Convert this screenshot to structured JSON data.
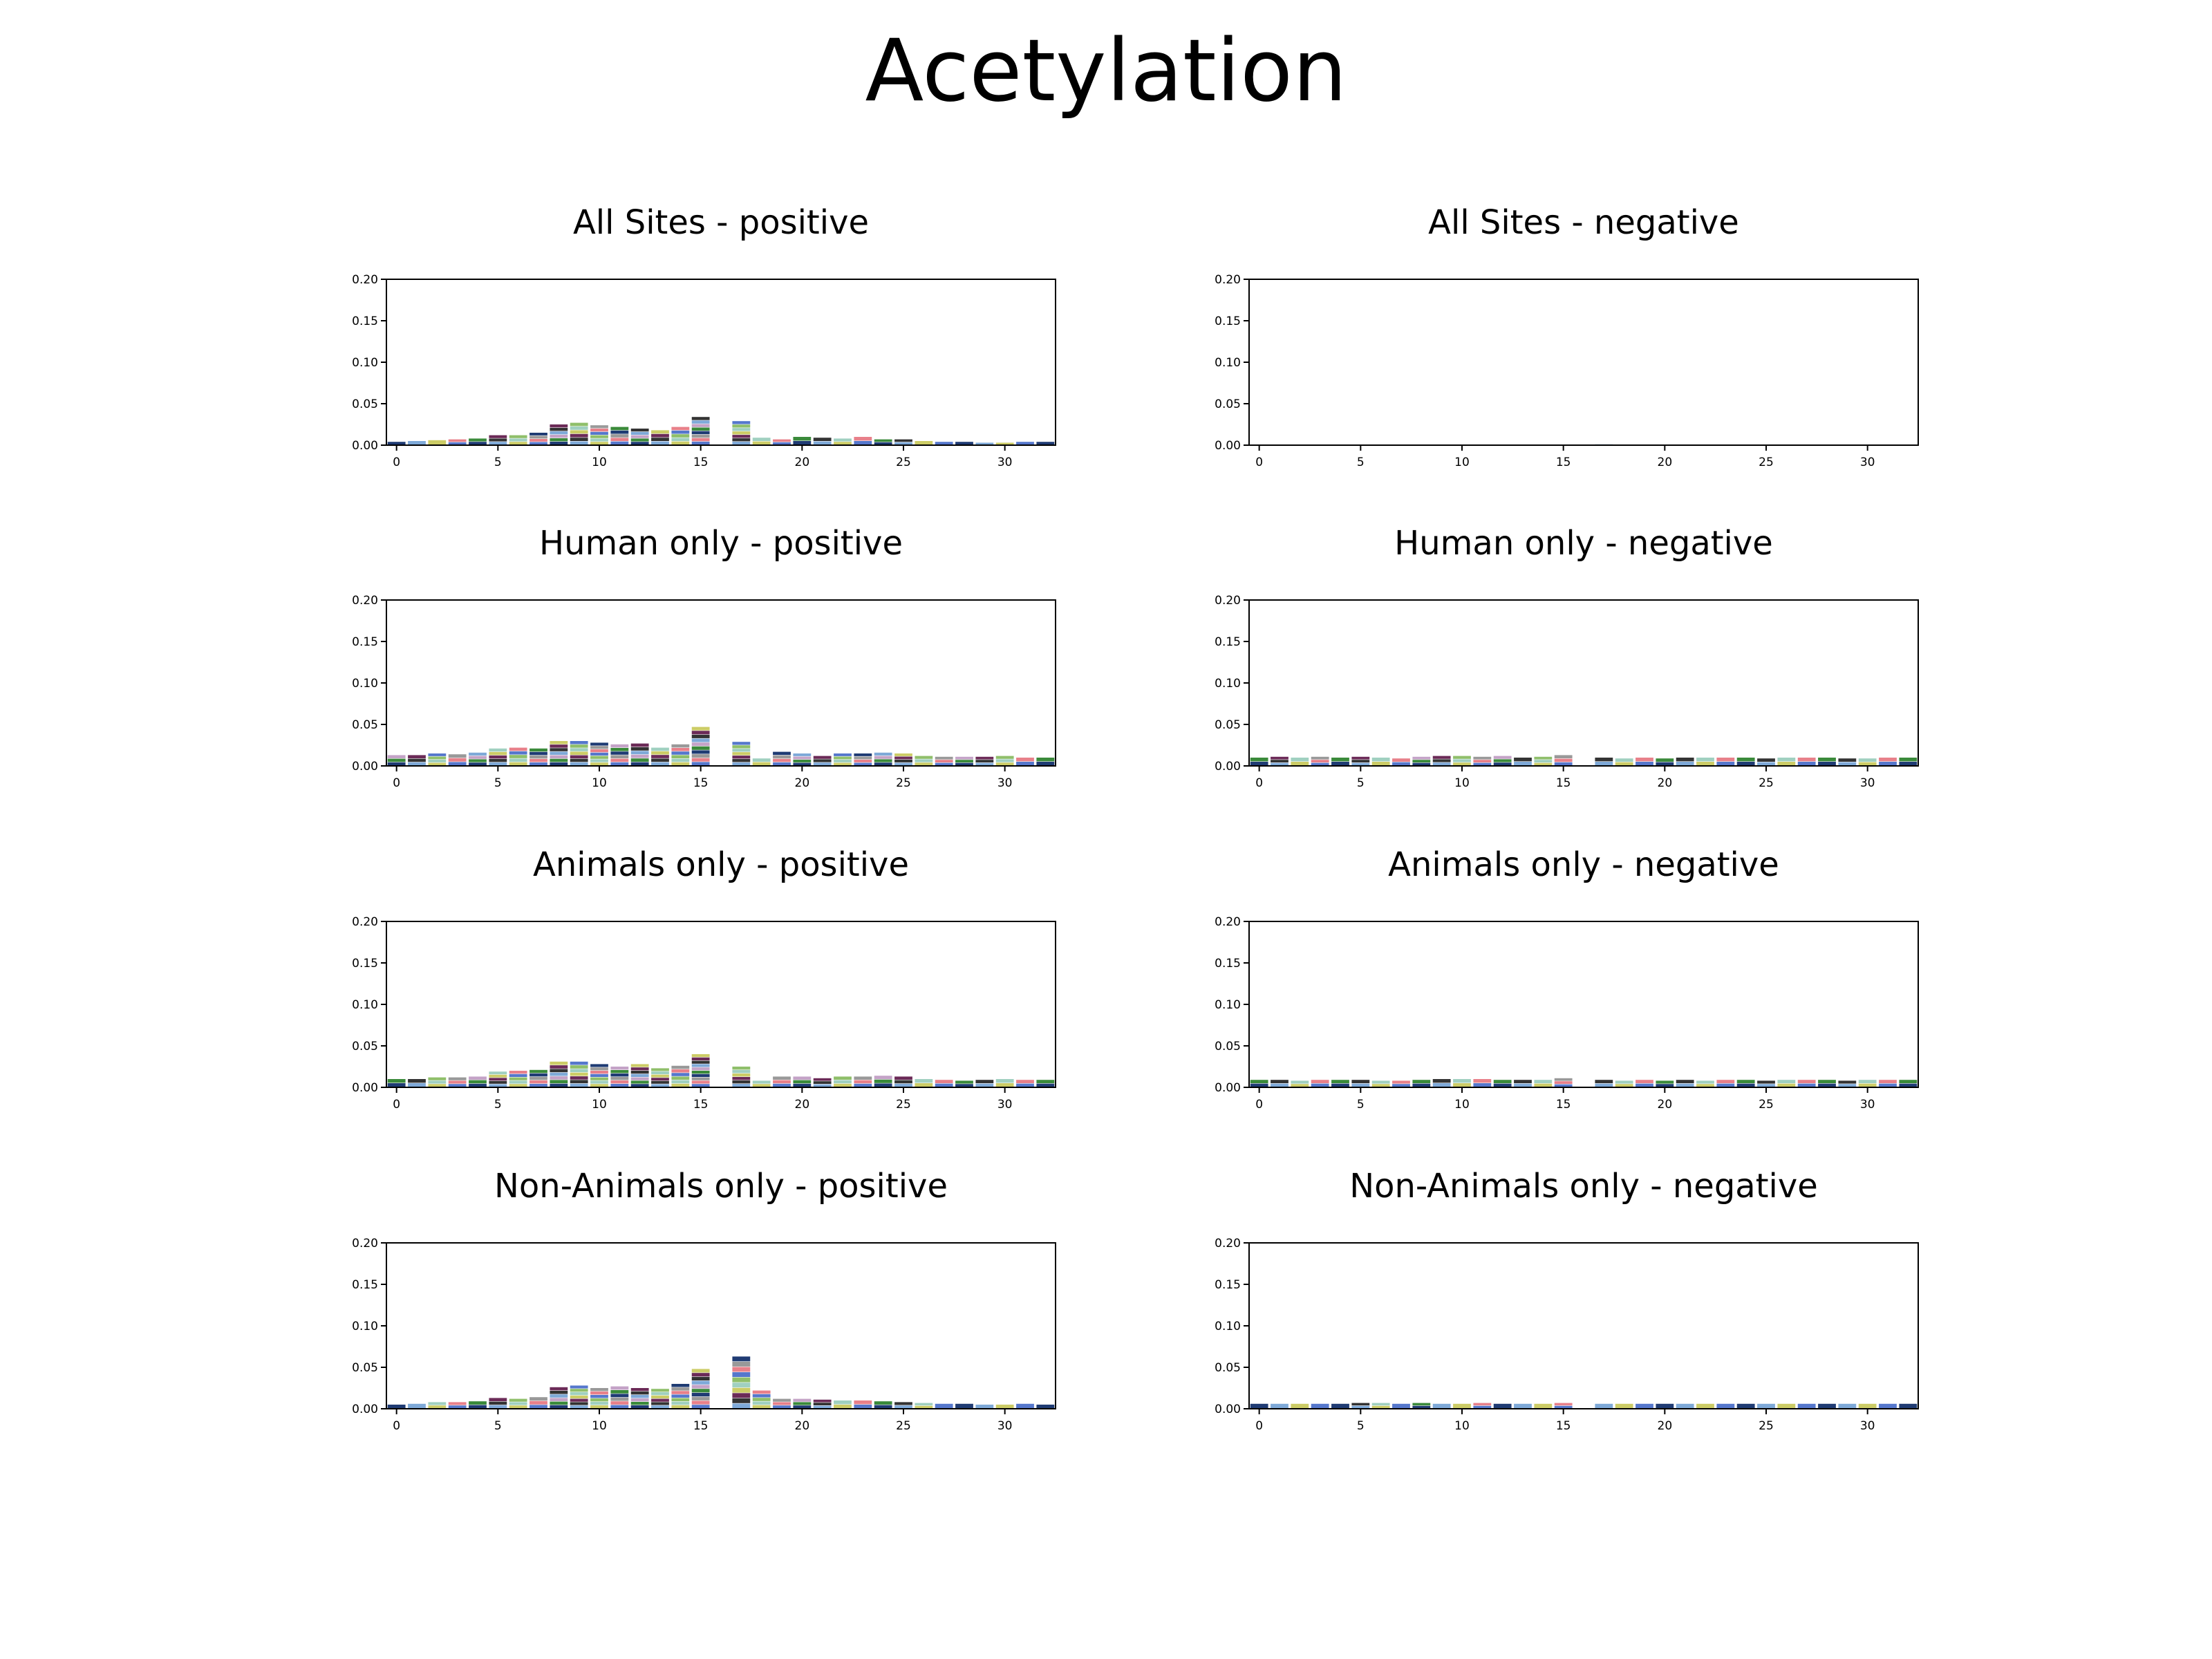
{
  "figure": {
    "title": "Acetylation"
  },
  "palette": [
    "#1f3b73",
    "#6b2a57",
    "#e8808a",
    "#7ea9d8",
    "#8fbf6a",
    "#3a8a3a",
    "#cccc66",
    "#999999",
    "#333333",
    "#5577cc",
    "#c4a3c7",
    "#a0d0c0"
  ],
  "chart_data": [
    {
      "id": "all-pos",
      "type": "bar",
      "title": "All Sites - positive",
      "x": [
        0,
        1,
        2,
        3,
        4,
        5,
        6,
        7,
        8,
        9,
        10,
        11,
        12,
        13,
        14,
        15,
        16,
        17,
        18,
        19,
        20,
        21,
        22,
        23,
        24,
        25,
        26,
        27,
        28,
        29,
        30,
        31,
        32
      ],
      "values": [
        0.004,
        0.005,
        0.006,
        0.007,
        0.008,
        0.012,
        0.012,
        0.015,
        0.025,
        0.027,
        0.024,
        0.022,
        0.02,
        0.018,
        0.022,
        0.034,
        0.0,
        0.029,
        0.009,
        0.007,
        0.01,
        0.009,
        0.008,
        0.01,
        0.007,
        0.007,
        0.005,
        0.004,
        0.004,
        0.003,
        0.003,
        0.004,
        0.004
      ],
      "xticks": [
        0,
        5,
        10,
        15,
        20,
        25,
        30
      ],
      "yticks": [
        "0.00",
        "0.05",
        "0.10",
        "0.15",
        "0.20"
      ],
      "ylim": [
        0,
        0.2
      ]
    },
    {
      "id": "all-neg",
      "type": "bar",
      "title": "All Sites - negative",
      "x": [
        0,
        1,
        2,
        3,
        4,
        5,
        6,
        7,
        8,
        9,
        10,
        11,
        12,
        13,
        14,
        15,
        16,
        17,
        18,
        19,
        20,
        21,
        22,
        23,
        24,
        25,
        26,
        27,
        28,
        29,
        30,
        31,
        32
      ],
      "values": [
        0.0005,
        0.0005,
        0.0005,
        0.0005,
        0.0005,
        0.0005,
        0.0005,
        0.0005,
        0.0005,
        0.0005,
        0.0005,
        0.0005,
        0.0005,
        0.0005,
        0.0005,
        0.0005,
        0.0,
        0.001,
        0.0005,
        0.0005,
        0.0005,
        0.0005,
        0.0005,
        0.0005,
        0.0005,
        0.0005,
        0.0005,
        0.0005,
        0.0005,
        0.0005,
        0.0005,
        0.0005,
        0.0005
      ],
      "xticks": [
        0,
        5,
        10,
        15,
        20,
        25,
        30
      ],
      "yticks": [
        "0.00",
        "0.05",
        "0.10",
        "0.15",
        "0.20"
      ],
      "ylim": [
        0,
        0.2
      ]
    },
    {
      "id": "human-pos",
      "type": "bar",
      "title": "Human only - positive",
      "x": [
        0,
        1,
        2,
        3,
        4,
        5,
        6,
        7,
        8,
        9,
        10,
        11,
        12,
        13,
        14,
        15,
        16,
        17,
        18,
        19,
        20,
        21,
        22,
        23,
        24,
        25,
        26,
        27,
        28,
        29,
        30,
        31,
        32
      ],
      "values": [
        0.013,
        0.013,
        0.015,
        0.014,
        0.016,
        0.021,
        0.022,
        0.021,
        0.03,
        0.03,
        0.028,
        0.026,
        0.027,
        0.022,
        0.026,
        0.047,
        0.0,
        0.029,
        0.009,
        0.017,
        0.015,
        0.012,
        0.015,
        0.015,
        0.016,
        0.015,
        0.012,
        0.011,
        0.011,
        0.011,
        0.012,
        0.01,
        0.01
      ],
      "xticks": [
        0,
        5,
        10,
        15,
        20,
        25,
        30
      ],
      "yticks": [
        "0.00",
        "0.05",
        "0.10",
        "0.15",
        "0.20"
      ],
      "ylim": [
        0,
        0.2
      ]
    },
    {
      "id": "human-neg",
      "type": "bar",
      "title": "Human only - negative",
      "x": [
        0,
        1,
        2,
        3,
        4,
        5,
        6,
        7,
        8,
        9,
        10,
        11,
        12,
        13,
        14,
        15,
        16,
        17,
        18,
        19,
        20,
        21,
        22,
        23,
        24,
        25,
        26,
        27,
        28,
        29,
        30,
        31,
        32
      ],
      "values": [
        0.01,
        0.011,
        0.01,
        0.011,
        0.01,
        0.011,
        0.01,
        0.009,
        0.011,
        0.012,
        0.012,
        0.011,
        0.012,
        0.01,
        0.011,
        0.013,
        0.0,
        0.01,
        0.009,
        0.01,
        0.009,
        0.01,
        0.01,
        0.01,
        0.01,
        0.009,
        0.01,
        0.01,
        0.01,
        0.009,
        0.009,
        0.01,
        0.01
      ],
      "xticks": [
        0,
        5,
        10,
        15,
        20,
        25,
        30
      ],
      "yticks": [
        "0.00",
        "0.05",
        "0.10",
        "0.15",
        "0.20"
      ],
      "ylim": [
        0,
        0.2
      ]
    },
    {
      "id": "animals-pos",
      "type": "bar",
      "title": "Animals only - positive",
      "x": [
        0,
        1,
        2,
        3,
        4,
        5,
        6,
        7,
        8,
        9,
        10,
        11,
        12,
        13,
        14,
        15,
        16,
        17,
        18,
        19,
        20,
        21,
        22,
        23,
        24,
        25,
        26,
        27,
        28,
        29,
        30,
        31,
        32
      ],
      "values": [
        0.01,
        0.01,
        0.012,
        0.012,
        0.013,
        0.019,
        0.02,
        0.021,
        0.031,
        0.031,
        0.028,
        0.025,
        0.028,
        0.023,
        0.026,
        0.04,
        0.0,
        0.025,
        0.008,
        0.013,
        0.013,
        0.011,
        0.013,
        0.013,
        0.014,
        0.013,
        0.01,
        0.009,
        0.008,
        0.009,
        0.01,
        0.009,
        0.009
      ],
      "xticks": [
        0,
        5,
        10,
        15,
        20,
        25,
        30
      ],
      "yticks": [
        "0.00",
        "0.05",
        "0.10",
        "0.15",
        "0.20"
      ],
      "ylim": [
        0,
        0.2
      ]
    },
    {
      "id": "animals-neg",
      "type": "bar",
      "title": "Animals only - negative",
      "x": [
        0,
        1,
        2,
        3,
        4,
        5,
        6,
        7,
        8,
        9,
        10,
        11,
        12,
        13,
        14,
        15,
        16,
        17,
        18,
        19,
        20,
        21,
        22,
        23,
        24,
        25,
        26,
        27,
        28,
        29,
        30,
        31,
        32
      ],
      "values": [
        0.009,
        0.009,
        0.008,
        0.009,
        0.009,
        0.009,
        0.008,
        0.008,
        0.009,
        0.01,
        0.01,
        0.01,
        0.009,
        0.009,
        0.009,
        0.011,
        0.0,
        0.009,
        0.008,
        0.009,
        0.008,
        0.009,
        0.008,
        0.009,
        0.009,
        0.008,
        0.009,
        0.009,
        0.009,
        0.008,
        0.009,
        0.009,
        0.009
      ],
      "xticks": [
        0,
        5,
        10,
        15,
        20,
        25,
        30
      ],
      "yticks": [
        "0.00",
        "0.05",
        "0.10",
        "0.15",
        "0.20"
      ],
      "ylim": [
        0,
        0.2
      ]
    },
    {
      "id": "nonanimals-pos",
      "type": "bar",
      "title": "Non-Animals only - positive",
      "x": [
        0,
        1,
        2,
        3,
        4,
        5,
        6,
        7,
        8,
        9,
        10,
        11,
        12,
        13,
        14,
        15,
        16,
        17,
        18,
        19,
        20,
        21,
        22,
        23,
        24,
        25,
        26,
        27,
        28,
        29,
        30,
        31,
        32
      ],
      "values": [
        0.005,
        0.006,
        0.008,
        0.008,
        0.009,
        0.013,
        0.012,
        0.014,
        0.026,
        0.028,
        0.025,
        0.027,
        0.025,
        0.024,
        0.03,
        0.048,
        0.0,
        0.063,
        0.022,
        0.012,
        0.012,
        0.011,
        0.01,
        0.01,
        0.009,
        0.008,
        0.007,
        0.006,
        0.006,
        0.005,
        0.005,
        0.006,
        0.005
      ],
      "xticks": [
        0,
        5,
        10,
        15,
        20,
        25,
        30
      ],
      "yticks": [
        "0.00",
        "0.05",
        "0.10",
        "0.15",
        "0.20"
      ],
      "ylim": [
        0,
        0.2
      ]
    },
    {
      "id": "nonanimals-neg",
      "type": "bar",
      "title": "Non-Animals only - negative",
      "x": [
        0,
        1,
        2,
        3,
        4,
        5,
        6,
        7,
        8,
        9,
        10,
        11,
        12,
        13,
        14,
        15,
        16,
        17,
        18,
        19,
        20,
        21,
        22,
        23,
        24,
        25,
        26,
        27,
        28,
        29,
        30,
        31,
        32
      ],
      "values": [
        0.006,
        0.006,
        0.006,
        0.006,
        0.006,
        0.007,
        0.007,
        0.006,
        0.007,
        0.006,
        0.006,
        0.007,
        0.006,
        0.006,
        0.006,
        0.007,
        0.0,
        0.006,
        0.006,
        0.006,
        0.006,
        0.006,
        0.006,
        0.006,
        0.006,
        0.006,
        0.006,
        0.006,
        0.006,
        0.006,
        0.006,
        0.006,
        0.006
      ],
      "xticks": [
        0,
        5,
        10,
        15,
        20,
        25,
        30
      ],
      "yticks": [
        "0.00",
        "0.05",
        "0.10",
        "0.15",
        "0.20"
      ],
      "ylim": [
        0,
        0.2
      ]
    }
  ]
}
